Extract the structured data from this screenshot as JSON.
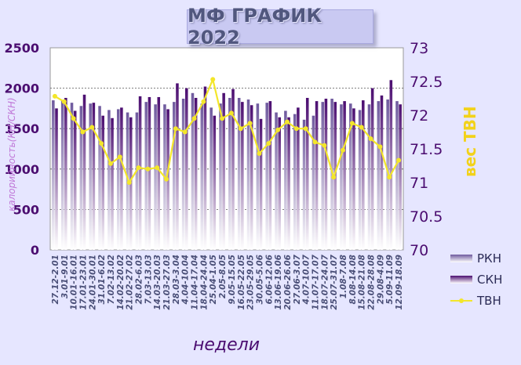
{
  "chart_data": {
    "type": "bar",
    "title": "МФ ГРАФИК 2022",
    "xlabel": "недели",
    "ylabel_left": "калорийность(КН/СКН)",
    "ylabel_right": "вес ТВН",
    "y_left": {
      "lim": [
        0,
        2500
      ],
      "ticks": [
        "0",
        "500",
        "1000",
        "1500",
        "2000",
        "2500"
      ]
    },
    "y_right": {
      "lim": [
        70,
        73
      ],
      "ticks": [
        "70",
        "70.5",
        "71",
        "71.5",
        "72",
        "72.5",
        "73"
      ]
    },
    "categories": [
      "27.12-2.01",
      "3.01-9.01",
      "10.01-16.01",
      "17.01-23.01",
      "24.01-30.01",
      "31.01-6.02",
      "7.02-13.02",
      "14.02-20.02",
      "21.02-27.02",
      "28.02-6.03",
      "7.03-13.03",
      "14.03-20.03",
      "21.03-27.03",
      "28.03-3.04",
      "4.04-10.04",
      "11.04-17.04",
      "18.04-24.04",
      "25.04-1.05",
      "2.05-8.05",
      "9.05-15.05",
      "16.05-22.05",
      "23.05-29.05",
      "30.05-5.06",
      "6.06-12.06",
      "13.06-19.06",
      "20.06-26.06",
      "27.06-3.07",
      "4.07-10.07",
      "11.07-17.07",
      "18.07-24.07",
      "25.07-31.07",
      "1.08-7.08",
      "8.08-14.08",
      "15.08-21.08",
      "22.08-28.08",
      "29.08-4.09",
      "5.09-11.09",
      "12.09-18.09"
    ],
    "categories_shown": [
      "27.12-2.01",
      "3.01-9.01",
      "10.01-16.01",
      "17.01-23.01",
      "24.01-30.01",
      "31.01-6.02",
      "7.02-13.02",
      "14.02-20.02",
      "21.02-27.02",
      "28.02-6.03",
      "7.03-13.03",
      "14.03-20.03",
      "21.03-27.03",
      "28.03-3.04",
      "4.04-10.04",
      "11.04-17.04",
      "18.04-24.04",
      "25.04-1.05",
      "2.05-8.05",
      "9.05-15.05",
      "16.05-22.05",
      "23.05-29.05",
      "30.05-5.06",
      "6.06-12.06",
      "13.06-19.06",
      "20.06-26.06",
      "27.06-3.07",
      "4.07-10.07",
      "11.07-17.07",
      "18.07-24.07",
      "25.07-31.07",
      "1.08-7.08",
      "8.08-14.08",
      "15.08-21.08",
      "22.08-28.08",
      "29.08-4.09",
      "5.09-11.09",
      "12.09-18.09"
    ],
    "series": [
      {
        "name": "РКН",
        "axis": "left",
        "color": "#6f5a9e",
        "values": [
          1850,
          1850,
          1820,
          1780,
          1810,
          1780,
          1730,
          1740,
          1700,
          1700,
          1830,
          1800,
          1800,
          1830,
          1870,
          1940,
          1810,
          1760,
          1810,
          1880,
          1880,
          1860,
          1810,
          1820,
          1700,
          1720,
          1680,
          1610,
          1660,
          1830,
          1870,
          1800,
          1810,
          1730,
          1800,
          1840,
          1860,
          1840
        ]
      },
      {
        "name": "СКН",
        "axis": "left",
        "color": "#4b0d70",
        "values": [
          1750,
          1880,
          1720,
          1920,
          1820,
          1660,
          1630,
          1760,
          1640,
          1900,
          1890,
          1890,
          1740,
          2060,
          2000,
          1880,
          2020,
          1660,
          1940,
          1990,
          1830,
          1790,
          1620,
          1840,
          1640,
          1640,
          1760,
          1880,
          1840,
          1870,
          1830,
          1840,
          1750,
          1850,
          2000,
          1910,
          2100,
          1800
        ]
      },
      {
        "name": "ТВН",
        "axis": "right",
        "color": "#f3e62a",
        "values": [
          72.28,
          72.2,
          71.95,
          71.75,
          71.82,
          71.58,
          71.28,
          71.38,
          71.0,
          71.22,
          71.2,
          71.22,
          71.05,
          71.8,
          71.75,
          71.95,
          72.2,
          72.53,
          71.95,
          72.03,
          71.8,
          71.88,
          71.43,
          71.58,
          71.78,
          71.9,
          71.8,
          71.8,
          71.6,
          71.55,
          71.08,
          71.48,
          71.88,
          71.82,
          71.65,
          71.53,
          71.08,
          71.33
        ]
      }
    ],
    "legend_position": "bottom-right",
    "grid": "horizontal-dashed"
  }
}
